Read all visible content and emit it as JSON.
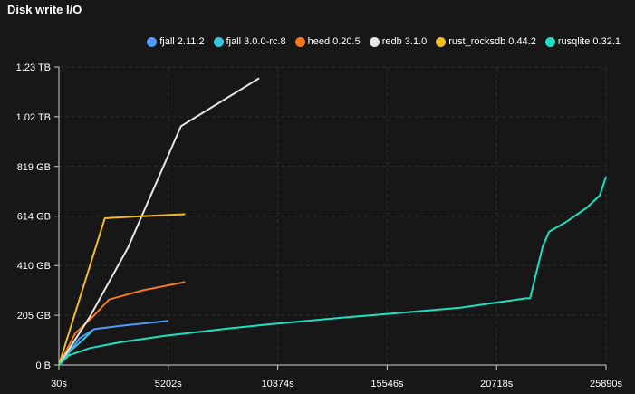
{
  "title": "Disk write I/O",
  "chart_data": {
    "type": "line",
    "title": "Disk write I/O",
    "xlabel": "",
    "ylabel": "",
    "x_tick_labels": [
      "30s",
      "5202s",
      "10374s",
      "15546s",
      "20718s",
      "25890s"
    ],
    "x_ticks": [
      30,
      5202,
      10374,
      15546,
      20718,
      25890
    ],
    "y_tick_labels": [
      "0 B",
      "205 GB",
      "410 GB",
      "614 GB",
      "819 GB",
      "1.02 TB",
      "1.23 TB"
    ],
    "y_ticks": [
      0,
      205,
      410,
      614,
      819,
      1024,
      1229
    ],
    "y_unit": "GB",
    "xlim": [
      30,
      25890
    ],
    "ylim": [
      0,
      1229
    ],
    "grid": true,
    "legend": "top-right",
    "series": [
      {
        "name": "fjall 2.11.2",
        "color": "#4f9cf6",
        "points": [
          [
            30,
            0
          ],
          [
            1000,
            110
          ],
          [
            1700,
            148
          ],
          [
            3000,
            162
          ],
          [
            5200,
            182
          ]
        ]
      },
      {
        "name": "fjall 3.0.0-rc.8",
        "color": "#38c6df",
        "points": [
          [
            30,
            0
          ],
          [
            600,
            60
          ],
          [
            1300,
            115
          ],
          [
            1600,
            140
          ]
        ]
      },
      {
        "name": "heed 0.20.5",
        "color": "#f47a1f",
        "points": [
          [
            30,
            0
          ],
          [
            800,
            130
          ],
          [
            1700,
            205
          ],
          [
            2400,
            270
          ],
          [
            4000,
            308
          ],
          [
            6000,
            342
          ]
        ]
      },
      {
        "name": "redb 3.1.0",
        "color": "#e6e6e6",
        "points": [
          [
            30,
            0
          ],
          [
            1500,
            200
          ],
          [
            3300,
            485
          ],
          [
            5800,
            985
          ],
          [
            9500,
            1183
          ]
        ]
      },
      {
        "name": "rust_rocksdb 0.44.2",
        "color": "#f3bb2b",
        "points": [
          [
            30,
            0
          ],
          [
            2200,
            605
          ],
          [
            3500,
            612
          ],
          [
            6000,
            622
          ]
        ]
      },
      {
        "name": "rusqlite 0.32.1",
        "color": "#1ee0c3",
        "points": [
          [
            30,
            0
          ],
          [
            500,
            40
          ],
          [
            1500,
            70
          ],
          [
            3000,
            95
          ],
          [
            5000,
            120
          ],
          [
            8000,
            150
          ],
          [
            10000,
            168
          ],
          [
            13000,
            192
          ],
          [
            16000,
            214
          ],
          [
            19000,
            236
          ],
          [
            22100,
            275
          ],
          [
            22300,
            275
          ],
          [
            22900,
            490
          ],
          [
            23200,
            550
          ],
          [
            24000,
            590
          ],
          [
            25000,
            650
          ],
          [
            25600,
            700
          ],
          [
            25890,
            777
          ]
        ]
      }
    ]
  }
}
